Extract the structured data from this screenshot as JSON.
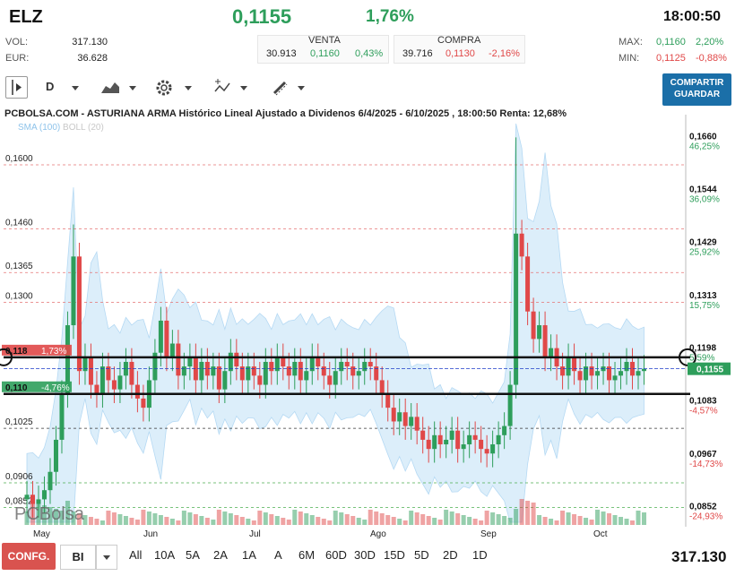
{
  "header": {
    "ticker": "ELZ",
    "price": "0,1155",
    "change_pct": "1,76%",
    "time": "18:00:50",
    "vol_label": "VOL:",
    "vol_value": "317.130",
    "eur_label": "EUR:",
    "eur_value": "36.628",
    "max_label": "MAX:",
    "max_price": "0,1160",
    "max_pct": "2,20%",
    "min_label": "MIN:",
    "min_price": "0,1125",
    "min_pct": "-0,88%"
  },
  "quotes": {
    "venta_label": "VENTA",
    "venta_qty": "30.913",
    "venta_price": "0,1160",
    "venta_pct": "0,43%",
    "compra_label": "COMPRA",
    "compra_qty": "39.716",
    "compra_price": "0,1130",
    "compra_pct": "-2,16%"
  },
  "toolbar": {
    "period": "D",
    "share_line1": "COMPARTIR",
    "share_line2": "GUARDAR"
  },
  "colors": {
    "up": "#2e9e5b",
    "down": "#e04848",
    "bollinger": "#d6ecfa",
    "button": "#1b6fa8",
    "config": "#d9534f"
  },
  "chart_data": {
    "type": "candlestick",
    "title": "PCBOLSA.COM - ASTURIANA ARMA Histórico Lineal Ajustado a Dividenos 6/4/2025 - 6/10/2025 , 18:00:50 Renta: 12,68%",
    "legend": [
      "SMA (100)",
      "BOLL (20)"
    ],
    "watermark": "PCBolsa",
    "x_labels": [
      "May",
      "Jun",
      "Jul",
      "Ago",
      "Sep",
      "Oct"
    ],
    "ylim": [
      0.082,
      0.169
    ],
    "right_ticks": [
      {
        "price": "0,1660",
        "pct": "46,25%",
        "v": 0.166
      },
      {
        "price": "0,1544",
        "pct": "36,09%",
        "v": 0.1544
      },
      {
        "price": "0,1429",
        "pct": "25,92%",
        "v": 0.1429
      },
      {
        "price": "0,1313",
        "pct": "15,75%",
        "v": 0.1313
      },
      {
        "price": "0,1198",
        "pct": "5,59%",
        "v": 0.1198
      },
      {
        "price": "0,1083",
        "pct": "-4,57%",
        "v": 0.1083
      },
      {
        "price": "0,0967",
        "pct": "-14,73%",
        "v": 0.0967
      },
      {
        "price": "0,0852",
        "pct": "-24,93%",
        "v": 0.0852
      }
    ],
    "left_levels": [
      {
        "label": "0,1600",
        "v": 0.16
      },
      {
        "label": "0,1460",
        "v": 0.146
      },
      {
        "label": "0,1365",
        "v": 0.1365
      },
      {
        "label": "0,1300",
        "v": 0.13
      },
      {
        "label": "0,1025",
        "v": 0.1025
      },
      {
        "label": "0,0906",
        "v": 0.0906
      },
      {
        "label": "0,0852",
        "v": 0.0852
      }
    ],
    "marked_levels": [
      {
        "label": "0,118",
        "pct": "1,73%",
        "v": 0.118,
        "color": "#e04848"
      },
      {
        "label": "0,110",
        "pct": "-4,76%",
        "v": 0.11,
        "color": "#2e9e5b"
      }
    ],
    "last_price": {
      "label": "0,1155",
      "v": 0.1155
    },
    "closes": [
      0.088,
      0.086,
      0.087,
      0.089,
      0.093,
      0.1,
      0.11,
      0.125,
      0.14,
      0.115,
      0.118,
      0.112,
      0.11,
      0.116,
      0.113,
      0.111,
      0.114,
      0.117,
      0.112,
      0.109,
      0.107,
      0.113,
      0.119,
      0.126,
      0.118,
      0.121,
      0.114,
      0.116,
      0.118,
      0.113,
      0.117,
      0.114,
      0.116,
      0.111,
      0.115,
      0.119,
      0.116,
      0.113,
      0.116,
      0.114,
      0.112,
      0.117,
      0.115,
      0.118,
      0.116,
      0.114,
      0.117,
      0.113,
      0.115,
      0.118,
      0.116,
      0.114,
      0.112,
      0.115,
      0.117,
      0.116,
      0.114,
      0.115,
      0.117,
      0.116,
      0.113,
      0.11,
      0.107,
      0.104,
      0.106,
      0.103,
      0.105,
      0.102,
      0.1,
      0.098,
      0.101,
      0.099,
      0.1,
      0.102,
      0.098,
      0.099,
      0.101,
      0.1,
      0.098,
      0.097,
      0.099,
      0.101,
      0.103,
      0.112,
      0.145,
      0.14,
      0.128,
      0.122,
      0.125,
      0.118,
      0.12,
      0.116,
      0.114,
      0.118,
      0.115,
      0.113,
      0.116,
      0.114,
      0.115,
      0.116,
      0.113,
      0.114,
      0.115,
      0.117,
      0.114,
      0.115,
      0.1155
    ]
  },
  "bottom": {
    "config_label": "CONFG.",
    "type_label": "BI",
    "ranges": [
      "All",
      "10A",
      "5A",
      "2A",
      "1A",
      "A",
      "6M",
      "60D",
      "30D",
      "15D",
      "5D",
      "2D",
      "1D"
    ],
    "volume_total": "317.130"
  }
}
